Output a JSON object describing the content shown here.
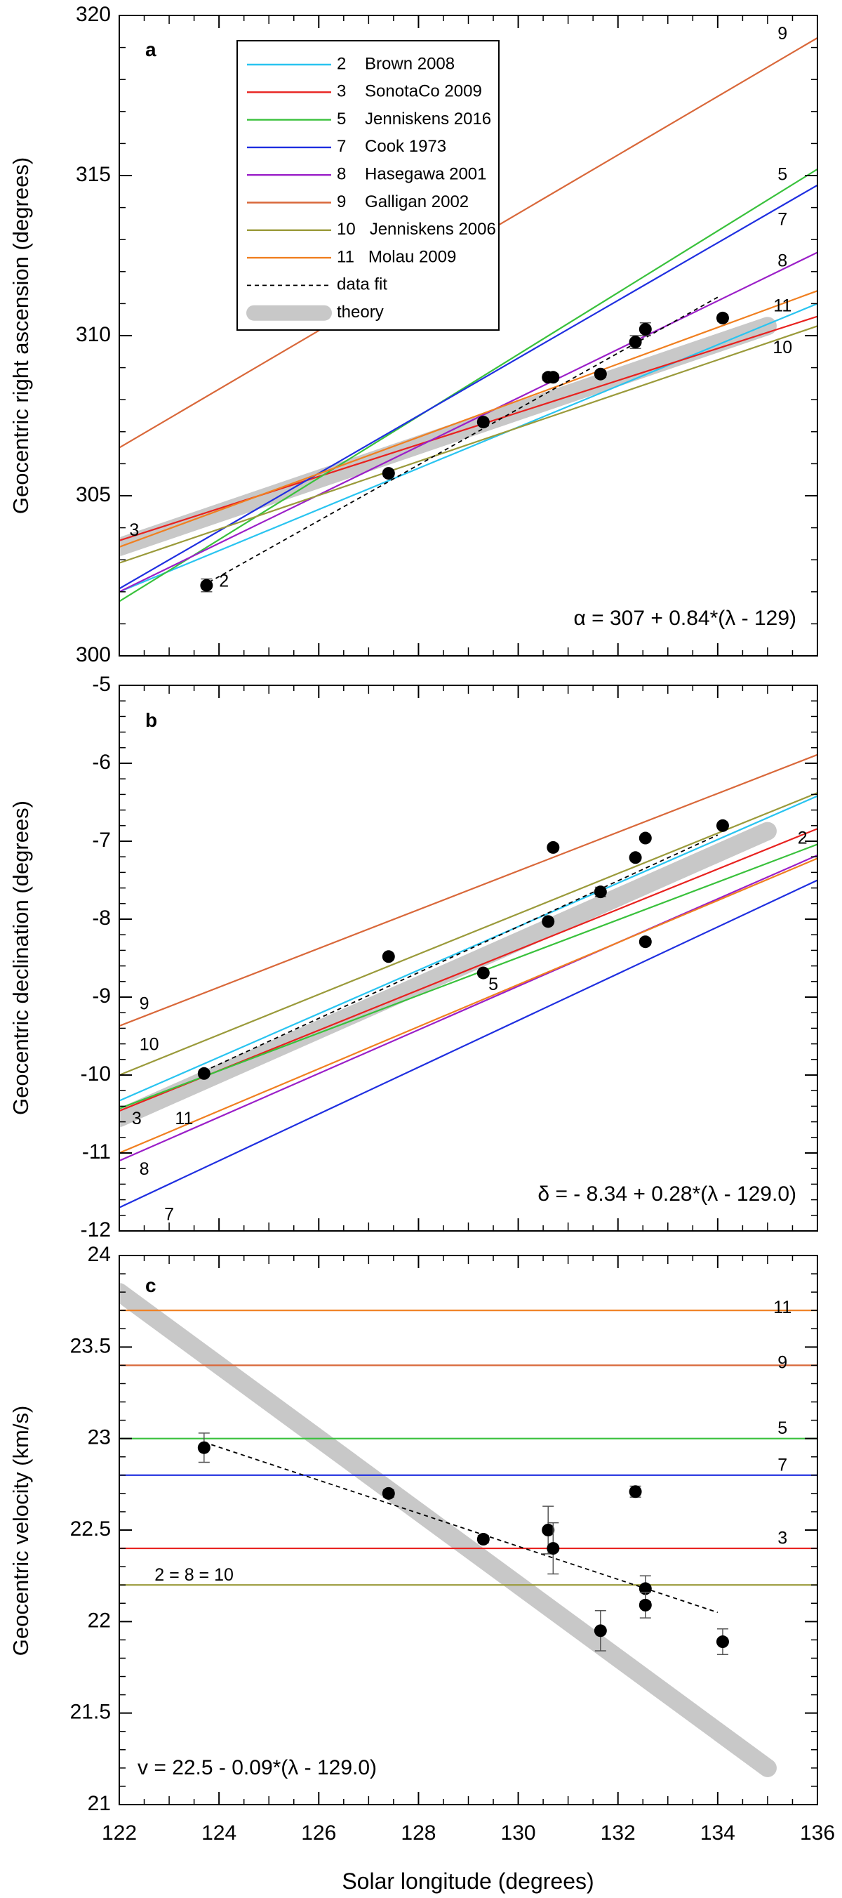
{
  "figure": {
    "xlabel": "Solar longitude (degrees)",
    "x_tick_labels": [
      "122",
      "124",
      "126",
      "128",
      "130",
      "132",
      "134",
      "136"
    ]
  },
  "legend": {
    "items": [
      {
        "label": "2    Brown 2008",
        "color": "#29c4f0",
        "style": "solid"
      },
      {
        "label": "3    SonotaCo 2009",
        "color": "#e8221f",
        "style": "solid"
      },
      {
        "label": "5    Jenniskens 2016",
        "color": "#39c13c",
        "style": "solid"
      },
      {
        "label": "7    Cook 1973",
        "color": "#1f2fe0",
        "style": "solid"
      },
      {
        "label": "8    Hasegawa 2001",
        "color": "#9b1fc8",
        "style": "solid"
      },
      {
        "label": "9    Galligan 2002",
        "color": "#d9683a",
        "style": "solid"
      },
      {
        "label": "10   Jenniskens 2006",
        "color": "#9a9a3a",
        "style": "solid"
      },
      {
        "label": "11   Molau 2009",
        "color": "#f07f20",
        "style": "solid"
      },
      {
        "label": "data fit",
        "color": "#000000",
        "style": "dashed"
      },
      {
        "label": "theory",
        "color": "#c8c8c8",
        "style": "thick"
      }
    ]
  },
  "chart_data": [
    {
      "panel": "a",
      "type": "line",
      "ylabel": "Geocentric right ascension (degrees)",
      "xlim": [
        122,
        136
      ],
      "ylim": [
        300,
        320
      ],
      "y_tick_labels": [
        "300",
        "305",
        "310",
        "315",
        "320"
      ],
      "equation": "α = 307 + 0.84*(λ - 129)",
      "series": [
        {
          "name": "2 Brown 2008",
          "color": "#29c4f0",
          "x": [
            122,
            136
          ],
          "y": [
            302.0,
            311.0
          ]
        },
        {
          "name": "3 SonotaCo 2009",
          "color": "#e8221f",
          "x": [
            122,
            136
          ],
          "y": [
            303.6,
            310.6
          ]
        },
        {
          "name": "5 Jenniskens 2016",
          "color": "#39c13c",
          "x": [
            122,
            136
          ],
          "y": [
            301.7,
            315.2
          ]
        },
        {
          "name": "7 Cook 1973",
          "color": "#1f2fe0",
          "x": [
            122,
            136
          ],
          "y": [
            302.1,
            314.7
          ]
        },
        {
          "name": "8 Hasegawa 2001",
          "color": "#9b1fc8",
          "x": [
            122,
            136
          ],
          "y": [
            302.0,
            312.6
          ]
        },
        {
          "name": "9 Galligan 2002",
          "color": "#d9683a",
          "x": [
            122,
            136
          ],
          "y": [
            306.5,
            319.3
          ]
        },
        {
          "name": "10 Jenniskens 2006",
          "color": "#9a9a3a",
          "x": [
            122,
            136
          ],
          "y": [
            302.9,
            310.3
          ]
        },
        {
          "name": "11 Molau 2009",
          "color": "#f07f20",
          "x": [
            122,
            136
          ],
          "y": [
            303.4,
            311.4
          ]
        }
      ],
      "line_labels": [
        {
          "text": "2",
          "x": 124.1,
          "y": 302.3
        },
        {
          "text": "3",
          "x": 122.3,
          "y": 303.9
        },
        {
          "text": "5",
          "x": 135.3,
          "y": 315.0
        },
        {
          "text": "7",
          "x": 135.3,
          "y": 313.6
        },
        {
          "text": "8",
          "x": 135.3,
          "y": 312.3
        },
        {
          "text": "9",
          "x": 135.3,
          "y": 319.4
        },
        {
          "text": "11",
          "x": 135.3,
          "y": 310.9
        },
        {
          "text": "10",
          "x": 135.3,
          "y": 309.6
        }
      ],
      "theory": {
        "x": [
          122,
          135
        ],
        "y": [
          303.4,
          310.3
        ]
      },
      "fit": {
        "x": [
          123.8,
          134.0
        ],
        "y": [
          302.3,
          311.2
        ]
      },
      "points": [
        {
          "x": 123.75,
          "y": 302.2,
          "err": 0.2
        },
        {
          "x": 127.4,
          "y": 305.7,
          "err": 0.1
        },
        {
          "x": 129.3,
          "y": 307.3,
          "err": 0.1
        },
        {
          "x": 130.6,
          "y": 308.7,
          "err": 0.1
        },
        {
          "x": 130.7,
          "y": 308.7,
          "err": 0.1
        },
        {
          "x": 131.65,
          "y": 308.8,
          "err": 0.1
        },
        {
          "x": 132.35,
          "y": 309.8,
          "err": 0.2
        },
        {
          "x": 132.55,
          "y": 310.2,
          "err": 0.2
        },
        {
          "x": 134.1,
          "y": 310.55,
          "err": 0.1
        }
      ]
    },
    {
      "panel": "b",
      "type": "line",
      "ylabel": "Geocentric declination (degrees)",
      "xlim": [
        122,
        136
      ],
      "ylim": [
        -12,
        -5
      ],
      "y_tick_labels": [
        "-12",
        "-11",
        "-10",
        "-9",
        "-8",
        "-7",
        "-6",
        "-5"
      ],
      "equation": "δ = - 8.34 + 0.28*(λ - 129.0)",
      "series": [
        {
          "name": "2 Brown 2008",
          "color": "#29c4f0",
          "x": [
            122,
            136
          ],
          "y": [
            -10.33,
            -6.42
          ]
        },
        {
          "name": "3 SonotaCo 2009",
          "color": "#e8221f",
          "x": [
            122,
            136
          ],
          "y": [
            -10.46,
            -6.84
          ]
        },
        {
          "name": "5 Jenniskens 2016",
          "color": "#39c13c",
          "x": [
            122,
            136
          ],
          "y": [
            -10.43,
            -7.04
          ]
        },
        {
          "name": "7 Cook 1973",
          "color": "#1f2fe0",
          "x": [
            122,
            136
          ],
          "y": [
            -11.7,
            -7.5
          ]
        },
        {
          "name": "8 Hasegawa 2001",
          "color": "#9b1fc8",
          "x": [
            122,
            136
          ],
          "y": [
            -11.1,
            -7.18
          ]
        },
        {
          "name": "9 Galligan 2002",
          "color": "#d9683a",
          "x": [
            122,
            136
          ],
          "y": [
            -9.37,
            -5.89
          ]
        },
        {
          "name": "10 Jenniskens 2006",
          "color": "#9a9a3a",
          "x": [
            122,
            136
          ],
          "y": [
            -10.0,
            -6.38
          ]
        },
        {
          "name": "11 Molau 2009",
          "color": "#f07f20",
          "x": [
            122,
            136
          ],
          "y": [
            -11.0,
            -7.22
          ]
        }
      ],
      "line_labels": [
        {
          "text": "9",
          "x": 122.5,
          "y": -9.1
        },
        {
          "text": "10",
          "x": 122.6,
          "y": -9.62
        },
        {
          "text": "3",
          "x": 122.35,
          "y": -10.57
        },
        {
          "text": "11",
          "x": 123.3,
          "y": -10.57
        },
        {
          "text": "8",
          "x": 122.5,
          "y": -11.22
        },
        {
          "text": "7",
          "x": 123.0,
          "y": -11.8
        },
        {
          "text": "5",
          "x": 129.5,
          "y": -8.85
        },
        {
          "text": "2",
          "x": 135.7,
          "y": -6.97
        }
      ],
      "theory": {
        "x": [
          122,
          135
        ],
        "y": [
          -10.55,
          -6.87
        ]
      },
      "fit": {
        "x": [
          123.7,
          134.0
        ],
        "y": [
          -9.95,
          -6.92
        ]
      },
      "points": [
        {
          "x": 123.7,
          "y": -9.98,
          "err": 0.03
        },
        {
          "x": 127.4,
          "y": -8.48,
          "err": 0.03
        },
        {
          "x": 129.3,
          "y": -8.69,
          "err": 0.03
        },
        {
          "x": 130.6,
          "y": -8.03,
          "err": 0.03
        },
        {
          "x": 130.7,
          "y": -7.08,
          "err": 0.03
        },
        {
          "x": 131.65,
          "y": -7.65,
          "err": 0.06
        },
        {
          "x": 132.35,
          "y": -7.21,
          "err": 0.03
        },
        {
          "x": 132.55,
          "y": -6.96,
          "err": 0.03
        },
        {
          "x": 132.55,
          "y": -8.29,
          "err": 0.04
        },
        {
          "x": 134.1,
          "y": -6.8,
          "err": 0.03
        }
      ]
    },
    {
      "panel": "c",
      "type": "line",
      "ylabel": "Geocentric velocity (km/s)",
      "xlim": [
        122,
        136
      ],
      "ylim": [
        21,
        24
      ],
      "y_tick_labels": [
        "21",
        "21.5",
        "22",
        "22.5",
        "23",
        "23.5",
        "24"
      ],
      "equation": "v = 22.5 - 0.09*(λ - 129.0)",
      "series": [
        {
          "name": "11 Molau 2009",
          "color": "#f07f20",
          "x": [
            122,
            136
          ],
          "y": [
            23.7,
            23.7
          ]
        },
        {
          "name": "9 Galligan 2002",
          "color": "#d9683a",
          "x": [
            122,
            136
          ],
          "y": [
            23.4,
            23.4
          ]
        },
        {
          "name": "5 Jenniskens 2016",
          "color": "#39c13c",
          "x": [
            122,
            136
          ],
          "y": [
            23.0,
            23.0
          ]
        },
        {
          "name": "7 Cook 1973",
          "color": "#1f2fe0",
          "x": [
            122,
            136
          ],
          "y": [
            22.8,
            22.8
          ]
        },
        {
          "name": "3 SonotaCo 2009",
          "color": "#e8221f",
          "x": [
            122,
            136
          ],
          "y": [
            22.4,
            22.4
          ]
        },
        {
          "name": "2 = 8 = 10",
          "color": "#9a9a3a",
          "x": [
            122,
            136
          ],
          "y": [
            22.2,
            22.2
          ]
        }
      ],
      "line_labels": [
        {
          "text": "11",
          "x": 135.3,
          "y": 23.71
        },
        {
          "text": "9",
          "x": 135.3,
          "y": 23.41
        },
        {
          "text": "5",
          "x": 135.3,
          "y": 23.05
        },
        {
          "text": "7",
          "x": 135.3,
          "y": 22.85
        },
        {
          "text": "3",
          "x": 135.3,
          "y": 22.45
        },
        {
          "text": "2 = 8 = 10",
          "x": 123.5,
          "y": 22.25
        }
      ],
      "theory": {
        "x": [
          122,
          135
        ],
        "y": [
          23.8,
          21.2
        ]
      },
      "fit": {
        "x": [
          123.7,
          134.0
        ],
        "y": [
          22.98,
          22.05
        ]
      },
      "points": [
        {
          "x": 123.7,
          "y": 22.95,
          "err": 0.08
        },
        {
          "x": 127.4,
          "y": 22.7,
          "err": 0.02
        },
        {
          "x": 129.3,
          "y": 22.45,
          "err": 0.02
        },
        {
          "x": 130.6,
          "y": 22.5,
          "err": 0.13
        },
        {
          "x": 130.7,
          "y": 22.4,
          "err": 0.14
        },
        {
          "x": 131.65,
          "y": 21.95,
          "err": 0.11
        },
        {
          "x": 132.35,
          "y": 22.71,
          "err": 0.03
        },
        {
          "x": 132.55,
          "y": 22.18,
          "err": 0.07
        },
        {
          "x": 132.55,
          "y": 22.09,
          "err": 0.07
        },
        {
          "x": 134.1,
          "y": 21.89,
          "err": 0.07
        }
      ]
    }
  ]
}
